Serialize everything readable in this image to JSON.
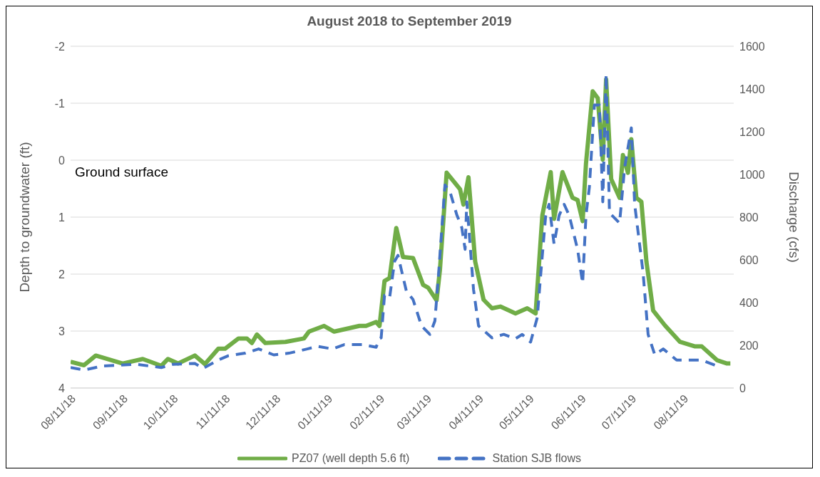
{
  "chart_data": {
    "type": "line",
    "title": "August 2018 to September 2019",
    "ylabel": "Depth to groundwater (ft)",
    "y2label": "Discharge (cfs)",
    "xlim": [
      "2018-08-11",
      "2019-09-10"
    ],
    "xticks": [
      {
        "value": "2018-08-11",
        "label": "08/11/18"
      },
      {
        "value": "2018-09-11",
        "label": "09/11/18"
      },
      {
        "value": "2018-10-11",
        "label": "10/11/18"
      },
      {
        "value": "2018-11-11",
        "label": "11/11/18"
      },
      {
        "value": "2018-12-11",
        "label": "12/11/18"
      },
      {
        "value": "2019-01-11",
        "label": "01/11/19"
      },
      {
        "value": "2019-02-11",
        "label": "02/11/19"
      },
      {
        "value": "2019-03-11",
        "label": "03/11/19"
      },
      {
        "value": "2019-04-11",
        "label": "04/11/19"
      },
      {
        "value": "2019-05-11",
        "label": "05/11/19"
      },
      {
        "value": "2019-06-11",
        "label": "06/11/19"
      },
      {
        "value": "2019-07-11",
        "label": "07/11/19"
      },
      {
        "value": "2019-08-11",
        "label": "08/11/19"
      }
    ],
    "ylim": [
      4,
      -2
    ],
    "yticks": [
      -2,
      -1,
      0,
      1,
      2,
      3,
      4
    ],
    "y2lim": [
      0,
      1600
    ],
    "y2ticks": [
      0,
      200,
      400,
      600,
      800,
      1000,
      1200,
      1400,
      1600
    ],
    "grid": "y",
    "legend": "bottom",
    "annotations": [
      "Ground surface"
    ],
    "series": [
      {
        "name": "PZ07 (well depth 5.6 ft)",
        "color": "#70ad47",
        "line_style": "solid",
        "x": [
          "2018-08-11",
          "2018-08-19",
          "2018-08-26",
          "2018-09-11",
          "2018-09-23",
          "2018-10-04",
          "2018-10-08",
          "2018-10-14",
          "2018-10-24",
          "2018-10-30",
          "2018-11-07",
          "2018-11-11",
          "2018-11-19",
          "2018-11-24",
          "2018-11-27",
          "2018-11-30",
          "2018-12-05",
          "2018-12-17",
          "2018-12-28",
          "2018-12-31",
          "2019-01-09",
          "2019-01-15",
          "2019-01-30",
          "2019-02-03",
          "2019-02-09",
          "2019-02-11",
          "2019-02-14",
          "2019-02-17",
          "2019-02-21",
          "2019-02-25",
          "2019-03-03",
          "2019-03-09",
          "2019-03-12",
          "2019-03-17",
          "2019-03-19",
          "2019-03-23",
          "2019-03-31",
          "2019-04-02",
          "2019-04-05",
          "2019-04-09",
          "2019-04-14",
          "2019-04-19",
          "2019-04-24",
          "2019-05-03",
          "2019-05-10",
          "2019-05-15",
          "2019-05-19",
          "2019-05-24",
          "2019-05-26",
          "2019-05-31",
          "2019-06-06",
          "2019-06-09",
          "2019-06-12",
          "2019-06-14",
          "2019-06-18",
          "2019-06-21",
          "2019-06-24",
          "2019-06-26",
          "2019-06-29",
          "2019-07-04",
          "2019-07-06",
          "2019-07-09",
          "2019-07-11",
          "2019-07-14",
          "2019-07-17",
          "2019-07-20",
          "2019-07-24",
          "2019-07-31",
          "2019-08-09",
          "2019-08-18",
          "2019-08-22",
          "2019-08-31",
          "2019-09-06",
          "2019-09-08"
        ],
        "values": [
          3.54,
          3.6,
          3.43,
          3.57,
          3.49,
          3.61,
          3.49,
          3.57,
          3.43,
          3.58,
          3.31,
          3.31,
          3.13,
          3.13,
          3.21,
          3.06,
          3.21,
          3.19,
          3.13,
          3.01,
          2.91,
          3.01,
          2.91,
          2.91,
          2.84,
          2.91,
          2.12,
          2.07,
          1.19,
          1.7,
          1.72,
          2.19,
          2.24,
          2.46,
          1.93,
          0.22,
          0.51,
          0.78,
          0.3,
          1.78,
          2.45,
          2.6,
          2.57,
          2.69,
          2.6,
          2.69,
          0.97,
          0.21,
          1.03,
          0.21,
          0.66,
          0.7,
          1.07,
          0.06,
          -1.21,
          -1.09,
          -0.01,
          -1.42,
          0.33,
          0.66,
          -0.09,
          0.22,
          -0.37,
          0.66,
          0.73,
          1.78,
          2.64,
          2.9,
          3.19,
          3.27,
          3.27,
          3.51,
          3.57,
          3.57
        ]
      },
      {
        "name": "Station SJB flows",
        "color": "#4472c4",
        "axis": "y2",
        "line_style": "dashed",
        "x": [
          "2018-08-11",
          "2018-08-19",
          "2018-08-30",
          "2018-09-19",
          "2018-10-04",
          "2018-10-11",
          "2018-10-24",
          "2018-10-29",
          "2018-11-07",
          "2018-11-13",
          "2018-11-23",
          "2018-12-01",
          "2018-12-10",
          "2018-12-19",
          "2018-12-30",
          "2019-01-05",
          "2019-01-14",
          "2019-01-21",
          "2019-02-01",
          "2019-02-09",
          "2019-02-11",
          "2019-02-12",
          "2019-02-14",
          "2019-02-17",
          "2019-02-20",
          "2019-02-22",
          "2019-02-27",
          "2019-03-03",
          "2019-03-08",
          "2019-03-13",
          "2019-03-16",
          "2019-03-18",
          "2019-03-22",
          "2019-03-25",
          "2019-03-29",
          "2019-04-01",
          "2019-04-03",
          "2019-04-04",
          "2019-04-08",
          "2019-04-11",
          "2019-04-19",
          "2019-04-26",
          "2019-05-03",
          "2019-05-07",
          "2019-05-12",
          "2019-05-16",
          "2019-05-18",
          "2019-05-21",
          "2019-05-23",
          "2019-05-26",
          "2019-05-29",
          "2019-06-01",
          "2019-06-04",
          "2019-06-09",
          "2019-06-12",
          "2019-06-14",
          "2019-06-16",
          "2019-06-19",
          "2019-06-22",
          "2019-06-24",
          "2019-06-26",
          "2019-06-28",
          "2019-07-04",
          "2019-07-07",
          "2019-07-11",
          "2019-07-13",
          "2019-07-18",
          "2019-07-21",
          "2019-07-25",
          "2019-07-30",
          "2019-08-07",
          "2019-08-16",
          "2019-08-22",
          "2019-08-31"
        ],
        "values": [
          96,
          84,
          103,
          111,
          96,
          111,
          115,
          92,
          131,
          151,
          163,
          183,
          155,
          163,
          183,
          195,
          183,
          203,
          203,
          191,
          231,
          235,
          434,
          422,
          593,
          621,
          454,
          414,
          291,
          251,
          314,
          513,
          951,
          919,
          812,
          752,
          649,
          872,
          462,
          291,
          235,
          251,
          231,
          251,
          215,
          330,
          529,
          808,
          860,
          673,
          808,
          860,
          808,
          649,
          490,
          808,
          939,
          1325,
          1325,
          872,
          1469,
          820,
          772,
          1031,
          1218,
          860,
          541,
          251,
          155,
          183,
          131,
          131,
          131,
          103
        ]
      }
    ]
  }
}
